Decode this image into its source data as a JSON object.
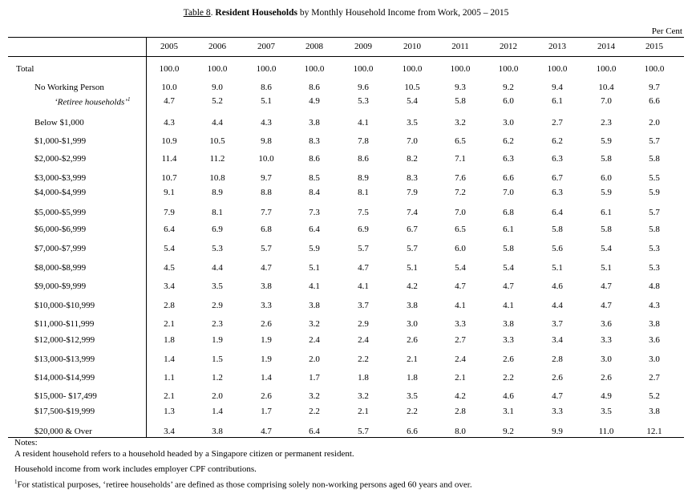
{
  "title": {
    "table_no": "Table 8",
    "bold": "Resident Households",
    "rest": " by Monthly Household Income from Work, 2005 – 2015"
  },
  "unit": "Per Cent",
  "years": [
    "2005",
    "2006",
    "2007",
    "2008",
    "2009",
    "2010",
    "2011",
    "2012",
    "2013",
    "2014",
    "2015"
  ],
  "rows": [
    {
      "label": "Total",
      "indent": 0,
      "values": [
        "100.0",
        "100.0",
        "100.0",
        "100.0",
        "100.0",
        "100.0",
        "100.0",
        "100.0",
        "100.0",
        "100.0",
        "100.0"
      ]
    },
    {
      "label": "No Working Person",
      "indent": 1,
      "values": [
        "10.0",
        "9.0",
        "8.6",
        "8.6",
        "9.6",
        "10.5",
        "9.3",
        "9.2",
        "9.4",
        "10.4",
        "9.7"
      ]
    },
    {
      "label": "‘Retiree households’",
      "footnote": "1",
      "indent": 2,
      "italic": true,
      "values": [
        "4.7",
        "5.2",
        "5.1",
        "4.9",
        "5.3",
        "5.4",
        "5.8",
        "6.0",
        "6.1",
        "7.0",
        "6.6"
      ]
    },
    {
      "label": "Below $1,000",
      "indent": 1,
      "values": [
        "4.3",
        "4.4",
        "4.3",
        "3.8",
        "4.1",
        "3.5",
        "3.2",
        "3.0",
        "2.7",
        "2.3",
        "2.0"
      ]
    },
    {
      "label": "$1,000-$1,999",
      "indent": 1,
      "values": [
        "10.9",
        "10.5",
        "9.8",
        "8.3",
        "7.8",
        "7.0",
        "6.5",
        "6.2",
        "6.2",
        "5.9",
        "5.7"
      ]
    },
    {
      "label": "$2,000-$2,999",
      "indent": 1,
      "values": [
        "11.4",
        "11.2",
        "10.0",
        "8.6",
        "8.6",
        "8.2",
        "7.1",
        "6.3",
        "6.3",
        "5.8",
        "5.8"
      ]
    },
    {
      "label": "$3,000-$3,999",
      "indent": 1,
      "values": [
        "10.7",
        "10.8",
        "9.7",
        "8.5",
        "8.9",
        "8.3",
        "7.6",
        "6.6",
        "6.7",
        "6.0",
        "5.5"
      ]
    },
    {
      "label": "$4,000-$4,999",
      "indent": 1,
      "values": [
        "9.1",
        "8.9",
        "8.8",
        "8.4",
        "8.1",
        "7.9",
        "7.2",
        "7.0",
        "6.3",
        "5.9",
        "5.9"
      ]
    },
    {
      "label": "$5,000-$5,999",
      "indent": 1,
      "values": [
        "7.9",
        "8.1",
        "7.7",
        "7.3",
        "7.5",
        "7.4",
        "7.0",
        "6.8",
        "6.4",
        "6.1",
        "5.7"
      ]
    },
    {
      "label": "$6,000-$6,999",
      "indent": 1,
      "values": [
        "6.4",
        "6.9",
        "6.8",
        "6.4",
        "6.9",
        "6.7",
        "6.5",
        "6.1",
        "5.8",
        "5.8",
        "5.8"
      ]
    },
    {
      "label": "$7,000-$7,999",
      "indent": 1,
      "values": [
        "5.4",
        "5.3",
        "5.7",
        "5.9",
        "5.7",
        "5.7",
        "6.0",
        "5.8",
        "5.6",
        "5.4",
        "5.3"
      ]
    },
    {
      "label": "$8,000-$8,999",
      "indent": 1,
      "values": [
        "4.5",
        "4.4",
        "4.7",
        "5.1",
        "4.7",
        "5.1",
        "5.4",
        "5.4",
        "5.1",
        "5.1",
        "5.3"
      ]
    },
    {
      "label": "$9,000-$9,999",
      "indent": 1,
      "values": [
        "3.4",
        "3.5",
        "3.8",
        "4.1",
        "4.1",
        "4.2",
        "4.7",
        "4.7",
        "4.6",
        "4.7",
        "4.8"
      ]
    },
    {
      "label": "$10,000-$10,999",
      "indent": 1,
      "values": [
        "2.8",
        "2.9",
        "3.3",
        "3.8",
        "3.7",
        "3.8",
        "4.1",
        "4.1",
        "4.4",
        "4.7",
        "4.3"
      ]
    },
    {
      "label": "$11,000-$11,999",
      "indent": 1,
      "values": [
        "2.1",
        "2.3",
        "2.6",
        "3.2",
        "2.9",
        "3.0",
        "3.3",
        "3.8",
        "3.7",
        "3.6",
        "3.8"
      ]
    },
    {
      "label": "$12,000-$12,999",
      "indent": 1,
      "values": [
        "1.8",
        "1.9",
        "1.9",
        "2.4",
        "2.4",
        "2.6",
        "2.7",
        "3.3",
        "3.4",
        "3.3",
        "3.6"
      ]
    },
    {
      "label": "$13,000-$13,999",
      "indent": 1,
      "values": [
        "1.4",
        "1.5",
        "1.9",
        "2.0",
        "2.2",
        "2.1",
        "2.4",
        "2.6",
        "2.8",
        "3.0",
        "3.0"
      ]
    },
    {
      "label": "$14,000-$14,999",
      "indent": 1,
      "values": [
        "1.1",
        "1.2",
        "1.4",
        "1.7",
        "1.8",
        "1.8",
        "2.1",
        "2.2",
        "2.6",
        "2.6",
        "2.7"
      ]
    },
    {
      "label": "$15,000- $17,499",
      "indent": 1,
      "values": [
        "2.1",
        "2.0",
        "2.6",
        "3.2",
        "3.2",
        "3.5",
        "4.2",
        "4.6",
        "4.7",
        "4.9",
        "5.2"
      ]
    },
    {
      "label": "$17,500-$19,999",
      "indent": 1,
      "values": [
        "1.3",
        "1.4",
        "1.7",
        "2.2",
        "2.1",
        "2.2",
        "2.8",
        "3.1",
        "3.3",
        "3.5",
        "3.8"
      ]
    },
    {
      "label": "$20,000 & Over",
      "indent": 1,
      "values": [
        "3.4",
        "3.8",
        "4.7",
        "6.4",
        "5.7",
        "6.6",
        "8.0",
        "9.2",
        "9.9",
        "11.0",
        "12.1"
      ]
    }
  ],
  "notes": {
    "heading": "Notes:",
    "n1": "A resident household refers to a household headed by a Singapore citizen or permanent resident.",
    "n2": "Household income from work includes employer CPF contributions.",
    "n3_mark": "1",
    "n3": "For statistical purposes, ‘retiree households’ are defined as those comprising solely non-working persons aged 60 years and over."
  }
}
